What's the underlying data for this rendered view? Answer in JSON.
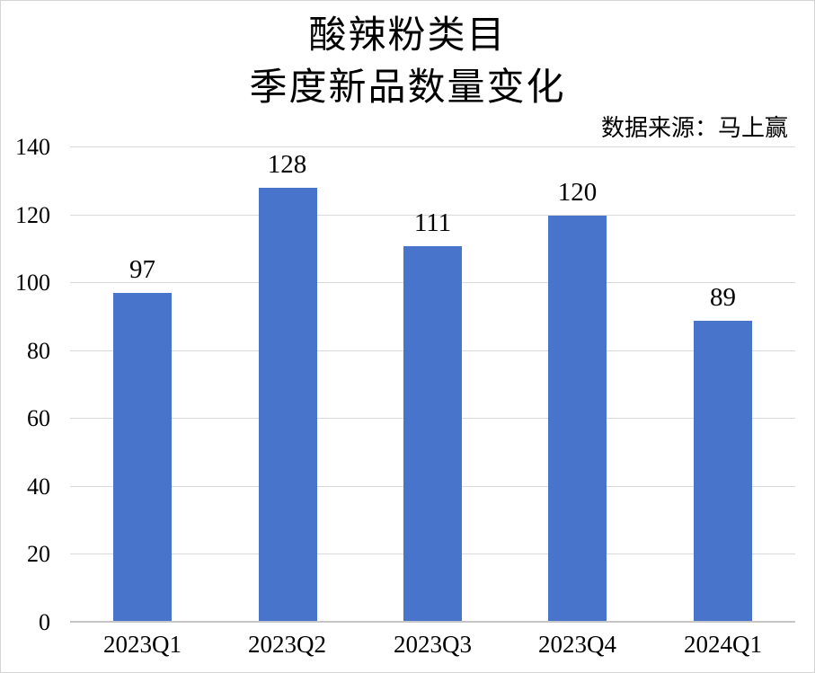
{
  "chart_data": {
    "type": "bar",
    "title": "酸辣粉类目 季度新品数量变化",
    "title_lines": [
      "酸辣粉类目",
      "季度新品数量变化"
    ],
    "source_note": "数据来源：马上赢",
    "categories": [
      "2023Q1",
      "2023Q2",
      "2023Q3",
      "2023Q4",
      "2024Q1"
    ],
    "values": [
      97,
      128,
      111,
      120,
      89
    ],
    "xlabel": "",
    "ylabel": "",
    "ylim": [
      0,
      140
    ],
    "yticks": [
      0,
      20,
      40,
      60,
      80,
      100,
      120,
      140
    ],
    "grid": true,
    "legend_position": "none",
    "colors": {
      "bar": "#4874CB",
      "gridline": "#D9D9D9",
      "axis_line": "#C6C6C6",
      "text": "#000000"
    }
  }
}
